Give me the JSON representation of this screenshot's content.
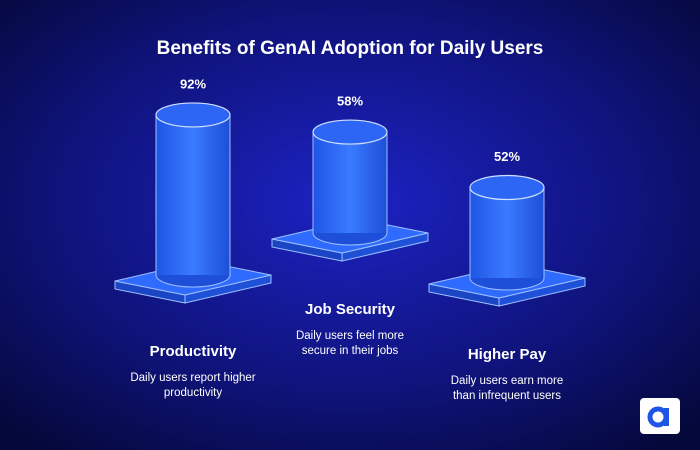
{
  "chart_data": {
    "type": "bar",
    "title": "Benefits of GenAI Adoption for Daily Users",
    "categories": [
      "Productivity",
      "Job Security",
      "Higher Pay"
    ],
    "values": [
      92,
      58,
      52
    ],
    "value_labels": [
      "92%",
      "58%",
      "52%"
    ],
    "descriptions": [
      [
        "Daily users report higher",
        "productivity"
      ],
      [
        "Daily users feel more",
        "secure in their jobs"
      ],
      [
        "Daily users earn more",
        "than infrequent users"
      ]
    ],
    "color": "#2f6bff"
  }
}
